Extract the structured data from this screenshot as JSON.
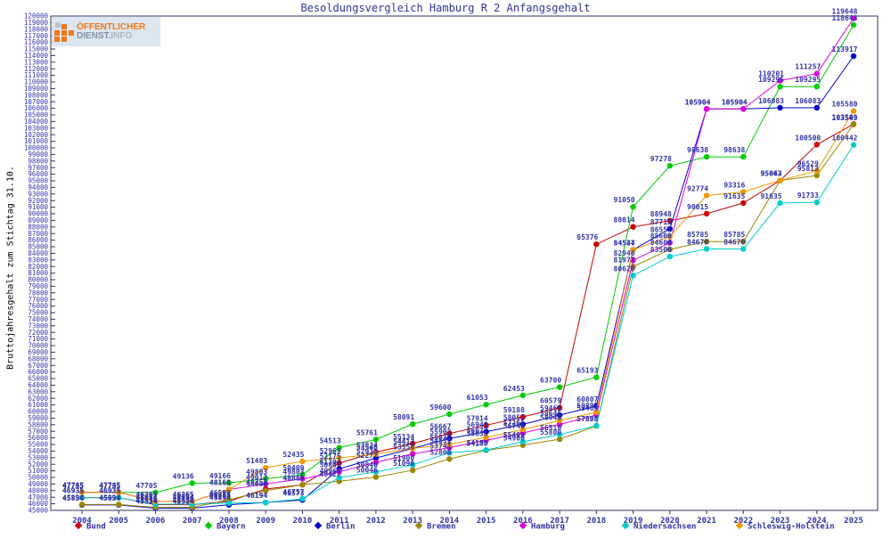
{
  "page": {
    "title": "Besoldungsvergleich Hamburg R 2 Anfangsgehalt"
  },
  "logo": {
    "line1": "ÖFFENTLICHER",
    "line2a": "DIENST.",
    "line2b": "INFO"
  },
  "colors": {
    "label_text": "#3333aa",
    "axis_frame": "#333366",
    "title_text": "#333399",
    "background": "#ffffff"
  },
  "chart_data": {
    "type": "line",
    "title": "Besoldungsvergleich Hamburg R 2 Anfangsgehalt",
    "ylabel": "Bruttojahresgehalt zum Stichtag 31.10.",
    "xlabel": "",
    "ylim": [
      45000,
      120000
    ],
    "ytick_step": 1000,
    "grid": false,
    "legend_position": "bottom",
    "point_labels": true,
    "x": [
      2004,
      2005,
      2006,
      2007,
      2008,
      2009,
      2010,
      2011,
      2012,
      2013,
      2014,
      2015,
      2016,
      2017,
      2018,
      2019,
      2020,
      2021,
      2022,
      2023,
      2024,
      2025
    ],
    "series": [
      {
        "name": "Bund",
        "color": "#cc0000",
        "values": [
          46935,
          46935,
          45854,
          45854,
          46385,
          48251,
          48880,
          52175,
          53824,
          55134,
          56667,
          57914,
          59188,
          60579,
          85376,
          88014,
          88948,
          90015,
          91635,
          95043,
          100500,
          103599
        ]
      },
      {
        "name": "Bayern",
        "color": "#00cc00",
        "values": [
          47735,
          47735,
          47705,
          49136,
          49166,
          49803,
          50409,
          54513,
          55761,
          58091,
          59600,
          61053,
          62453,
          63700,
          65193,
          91050,
          97278,
          98638,
          98638,
          109295,
          109295,
          118643
        ]
      },
      {
        "name": "Berlin",
        "color": "#0000cc",
        "values": [
          45834,
          45834,
          45334,
          45334,
          45854,
          46194,
          46573,
          51304,
          52935,
          54413,
          55902,
          56949,
          58052,
          59465,
          60807,
          84527,
          87713,
          105904,
          105904,
          106083,
          106083,
          113917
        ]
      },
      {
        "name": "Bremen",
        "color": "#998800",
        "values": [
          45894,
          45894,
          45454,
          45454,
          46599,
          48000,
          48880,
          49427,
          50046,
          51090,
          52800,
          54105,
          54900,
          55800,
          57808,
          81977,
          84600,
          85785,
          85785,
          95043,
          95813,
          103545
        ]
      },
      {
        "name": "Hamburg",
        "color": "#dd00dd",
        "values": [
          47745,
          47745,
          46365,
          46365,
          48168,
          49012,
          49803,
          50846,
          52277,
          53558,
          54531,
          55635,
          56740,
          58040,
          59463,
          82946,
          85600,
          105904,
          105904,
          110201,
          111257,
          119648
        ]
      },
      {
        "name": "Niedersachsen",
        "color": "#00cccc",
        "values": [
          46931,
          46931,
          45954,
          45954,
          46100,
          46194,
          46757,
          49966,
          50846,
          51900,
          53741,
          54156,
          55403,
          56510,
          57858,
          80626,
          83506,
          84670,
          84670,
          91635,
          91733,
          100442
        ]
      },
      {
        "name": "Schleswig-Holstein",
        "color": "#ee9900",
        "values": [
          47735,
          47735,
          46365,
          46365,
          48168,
          51483,
          52435,
          52969,
          53546,
          54413,
          55031,
          56077,
          57261,
          58646,
          59893,
          84544,
          86557,
          92774,
          93316,
          95062,
          96529,
          105580
        ]
      }
    ]
  }
}
